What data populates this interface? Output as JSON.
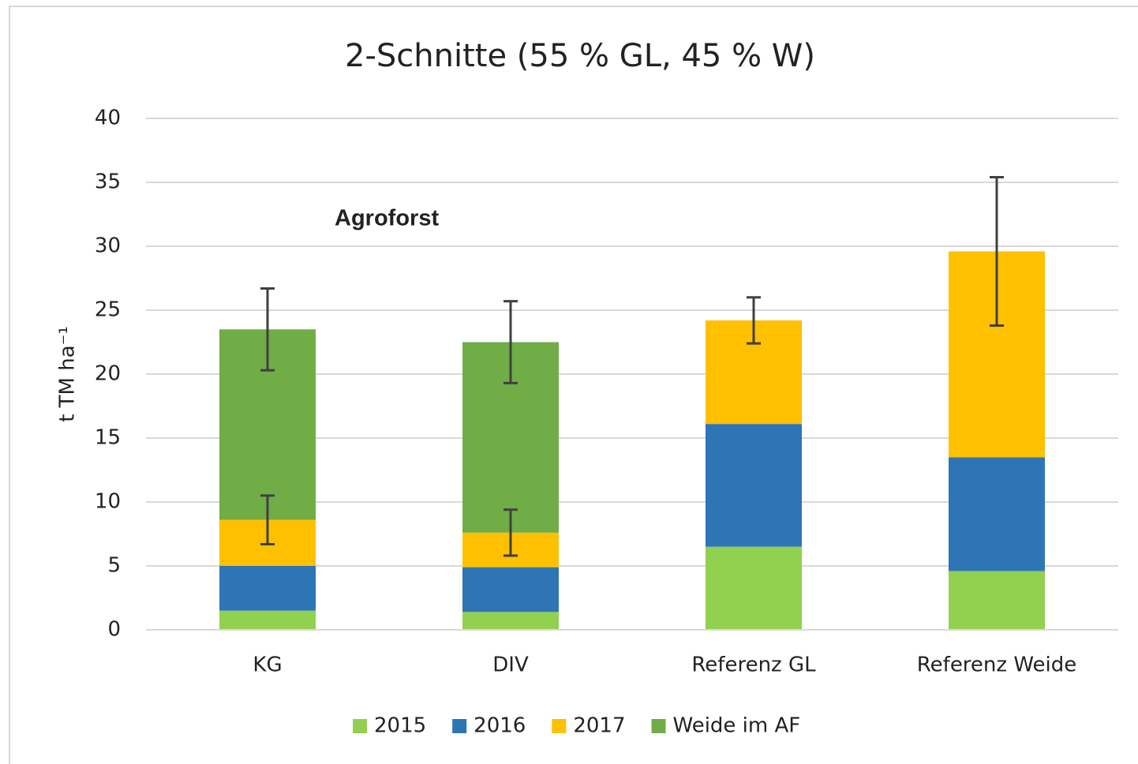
{
  "chart_data": {
    "type": "stacked_bar",
    "title": "2-Schnitte (55 % GL, 45 % W)",
    "y_label": "t TM ha⁻¹",
    "annotation": "Agroforst",
    "categories": [
      "KG",
      "DIV",
      "Referenz GL",
      "Referenz Weide"
    ],
    "series": [
      {
        "name": "2015",
        "color": "#92d050",
        "values": [
          1.5,
          1.4,
          6.5,
          4.6
        ]
      },
      {
        "name": "2016",
        "color": "#2e75b6",
        "values": [
          3.5,
          3.5,
          9.6,
          8.9
        ]
      },
      {
        "name": "2017",
        "color": "#ffc000",
        "values": [
          3.6,
          2.7,
          8.1,
          16.1
        ],
        "errors": [
          1.9,
          1.8,
          1.8,
          5.8
        ]
      },
      {
        "name": "Weide im AF",
        "color": "#70ad47",
        "values": [
          14.9,
          14.9,
          null,
          null
        ],
        "errors": [
          3.2,
          3.2,
          null,
          null
        ]
      }
    ],
    "ylim": [
      0,
      40
    ],
    "yticks": [
      0,
      5,
      10,
      15,
      20,
      25,
      30,
      35,
      40
    ],
    "grid": true,
    "legend": "bottom"
  }
}
